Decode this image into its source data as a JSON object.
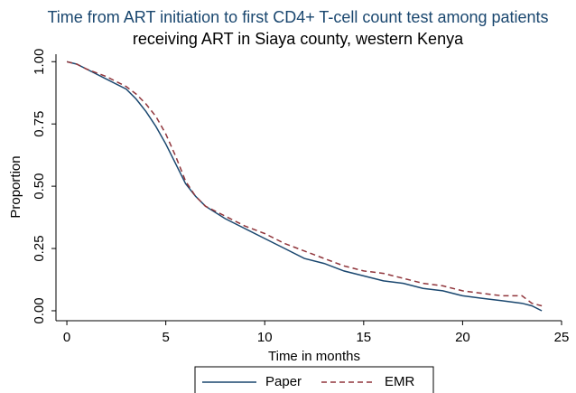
{
  "chart_data": {
    "type": "line",
    "title": "Time from ART initiation to first CD4+ T-cell count test among patients",
    "subtitle": "receiving ART in Siaya county, western Kenya",
    "x_label": "Time in months",
    "y_label": "Proportion",
    "x": [
      0,
      0.5,
      1,
      2,
      3,
      3.5,
      4,
      4.5,
      5,
      5.5,
      6,
      6.5,
      7,
      8,
      9,
      10,
      11,
      12,
      13,
      14,
      15,
      16,
      17,
      18,
      19,
      20,
      21,
      22,
      23,
      23.5,
      24
    ],
    "series": [
      {
        "name": "Paper",
        "color": "#1a476f",
        "dash": false,
        "values": [
          1.0,
          0.99,
          0.97,
          0.93,
          0.89,
          0.85,
          0.8,
          0.74,
          0.67,
          0.59,
          0.51,
          0.46,
          0.42,
          0.37,
          0.33,
          0.29,
          0.25,
          0.21,
          0.19,
          0.16,
          0.14,
          0.12,
          0.11,
          0.09,
          0.08,
          0.06,
          0.05,
          0.04,
          0.03,
          0.02,
          0.0
        ]
      },
      {
        "name": "EMR",
        "color": "#90353b",
        "dash": true,
        "values": [
          1.0,
          0.99,
          0.97,
          0.94,
          0.9,
          0.87,
          0.83,
          0.78,
          0.71,
          0.62,
          0.52,
          0.46,
          0.42,
          0.38,
          0.34,
          0.31,
          0.27,
          0.24,
          0.21,
          0.18,
          0.16,
          0.15,
          0.13,
          0.11,
          0.1,
          0.08,
          0.07,
          0.06,
          0.06,
          0.03,
          0.02
        ]
      }
    ],
    "xlim": [
      -0.55,
      25
    ],
    "xticks": [
      0,
      5,
      10,
      15,
      20,
      25
    ],
    "ylim": [
      -0.04,
      1.03
    ],
    "yticks": [
      {
        "value": 0,
        "label": "0.00"
      },
      {
        "value": 0.25,
        "label": "0.25"
      },
      {
        "value": 0.5,
        "label": "0.50"
      },
      {
        "value": 0.75,
        "label": "0.75"
      },
      {
        "value": 1,
        "label": "1.00"
      }
    ],
    "legend": "bottom"
  }
}
